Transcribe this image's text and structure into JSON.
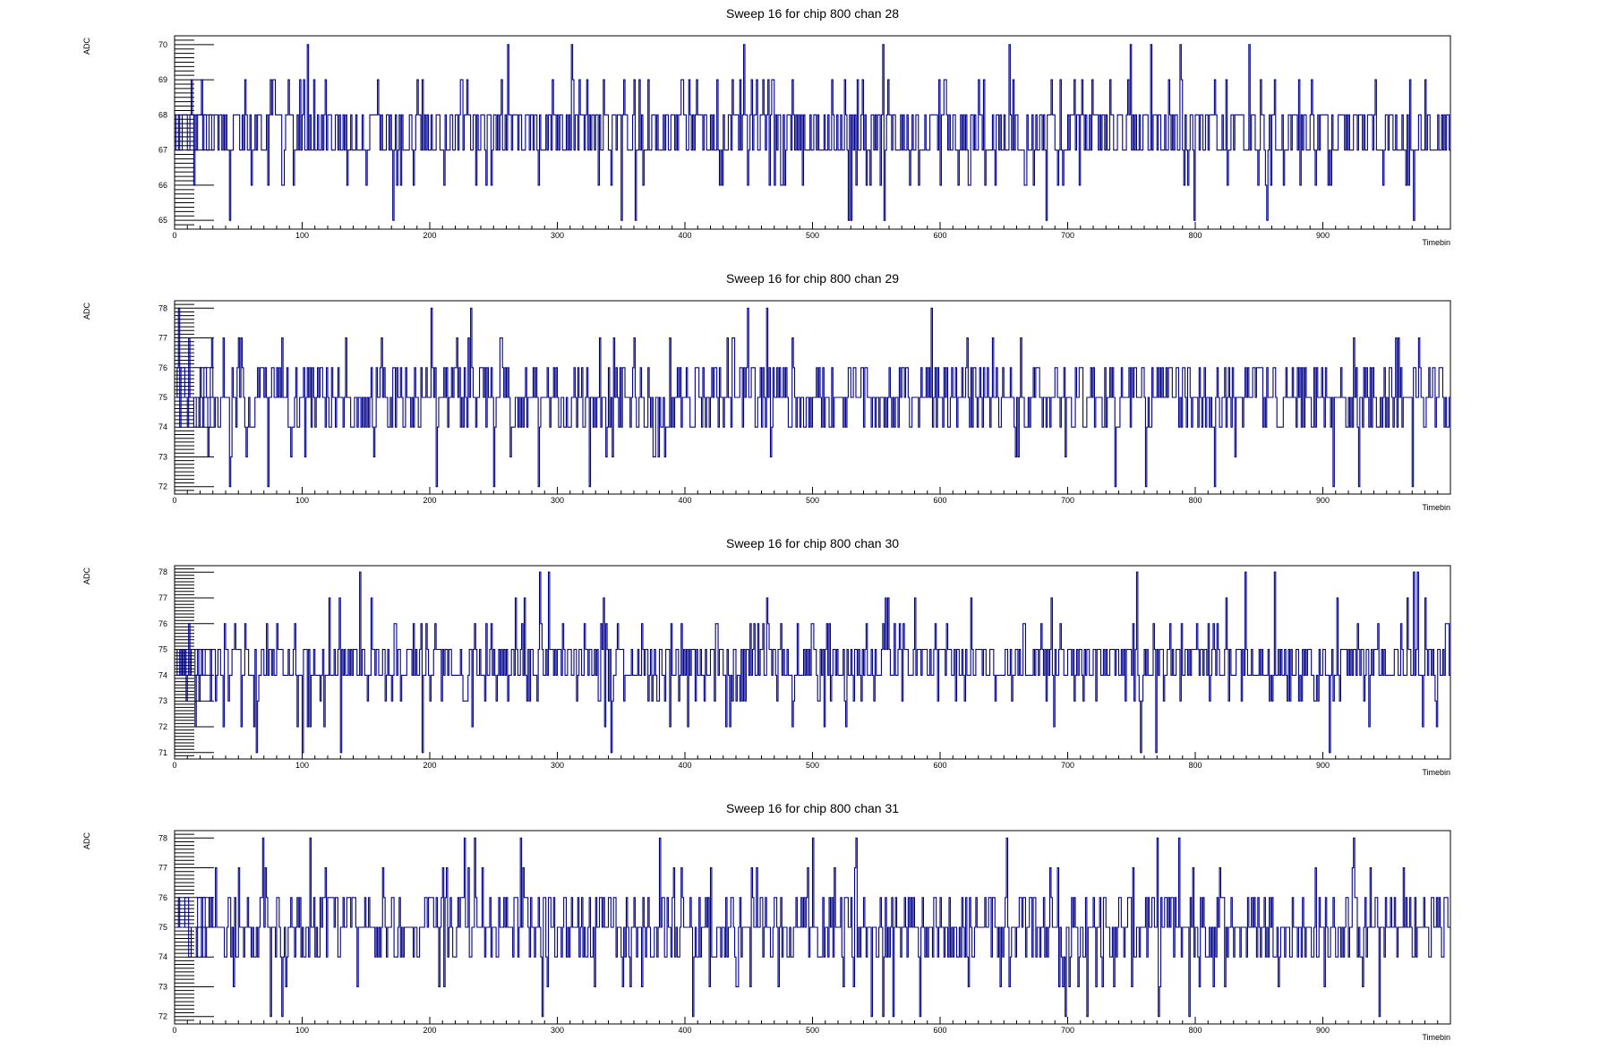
{
  "chart_data": [
    {
      "type": "line",
      "title": "Sweep 16 for chip 800 chan 28",
      "xlabel": "Timebin",
      "ylabel": "ADC",
      "xlim": [
        0,
        1000
      ],
      "ylim": [
        64.75,
        70.25
      ],
      "x_ticks": [
        0,
        100,
        200,
        300,
        400,
        500,
        600,
        700,
        800,
        900
      ],
      "y_ticks": [
        65,
        66,
        67,
        68,
        69,
        70
      ],
      "grid": false,
      "series": [
        {
          "color": "#00008b",
          "baseline": 67.5,
          "min": 65,
          "max": 70,
          "samples": 1000,
          "seed": 28
        }
      ]
    },
    {
      "type": "line",
      "title": "Sweep 16 for chip 800 chan 29",
      "xlabel": "Timebin",
      "ylabel": "ADC",
      "xlim": [
        0,
        1000
      ],
      "ylim": [
        71.75,
        78.25
      ],
      "x_ticks": [
        0,
        100,
        200,
        300,
        400,
        500,
        600,
        700,
        800,
        900
      ],
      "y_ticks": [
        72,
        73,
        74,
        75,
        76,
        77,
        78
      ],
      "grid": false,
      "series": [
        {
          "color": "#00008b",
          "baseline": 75,
          "min": 72,
          "max": 78,
          "samples": 1000,
          "seed": 29
        }
      ]
    },
    {
      "type": "line",
      "title": "Sweep 16 for chip 800 chan 30",
      "xlabel": "Timebin",
      "ylabel": "ADC",
      "xlim": [
        0,
        1000
      ],
      "ylim": [
        70.75,
        78.25
      ],
      "x_ticks": [
        0,
        100,
        200,
        300,
        400,
        500,
        600,
        700,
        800,
        900
      ],
      "y_ticks": [
        71,
        72,
        73,
        74,
        75,
        76,
        77,
        78
      ],
      "grid": false,
      "series": [
        {
          "color": "#00008b",
          "baseline": 74.5,
          "min": 71,
          "max": 78,
          "samples": 1000,
          "seed": 30
        }
      ]
    },
    {
      "type": "line",
      "title": "Sweep 16 for chip 800 chan 31",
      "xlabel": "Timebin",
      "ylabel": "ADC",
      "xlim": [
        0,
        1000
      ],
      "ylim": [
        71.75,
        78.25
      ],
      "x_ticks": [
        0,
        100,
        200,
        300,
        400,
        500,
        600,
        700,
        800,
        900
      ],
      "y_ticks": [
        72,
        73,
        74,
        75,
        76,
        77,
        78
      ],
      "grid": false,
      "series": [
        {
          "color": "#00008b",
          "baseline": 75,
          "min": 72,
          "max": 78,
          "samples": 1000,
          "seed": 31
        }
      ]
    }
  ]
}
